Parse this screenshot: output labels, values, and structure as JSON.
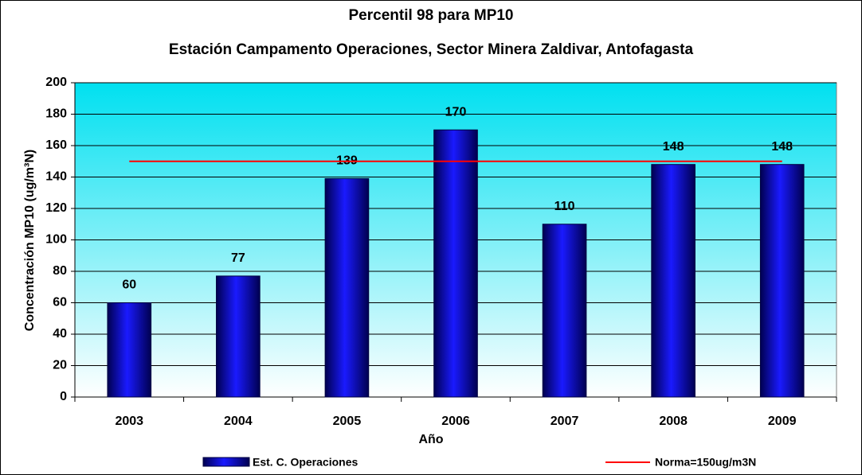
{
  "chart_data": {
    "type": "bar",
    "title": "Percentil 98 para MP10",
    "subtitle": "Estación Campamento Operaciones, Sector Minera Zaldivar, Antofagasta",
    "x_label": "Año",
    "y_label": "Concentración MP10 (ug/m³N)",
    "categories": [
      "2003",
      "2004",
      "2005",
      "2006",
      "2007",
      "2008",
      "2009"
    ],
    "series": [
      {
        "name": "Est. C. Operaciones",
        "type": "bar",
        "color": "#0000cc",
        "values": [
          60,
          77,
          139,
          170,
          110,
          148,
          148
        ]
      },
      {
        "name": "Norma=150ug/m3N",
        "type": "line",
        "color": "#ff0000",
        "values": [
          150,
          150,
          150,
          150,
          150,
          150,
          150
        ]
      }
    ],
    "ylim": [
      0,
      200
    ],
    "yticks": [
      0,
      20,
      40,
      60,
      80,
      100,
      120,
      140,
      160,
      180,
      200
    ],
    "grid": true,
    "legend": "bottom",
    "value_label_color": "#1f3fff"
  }
}
